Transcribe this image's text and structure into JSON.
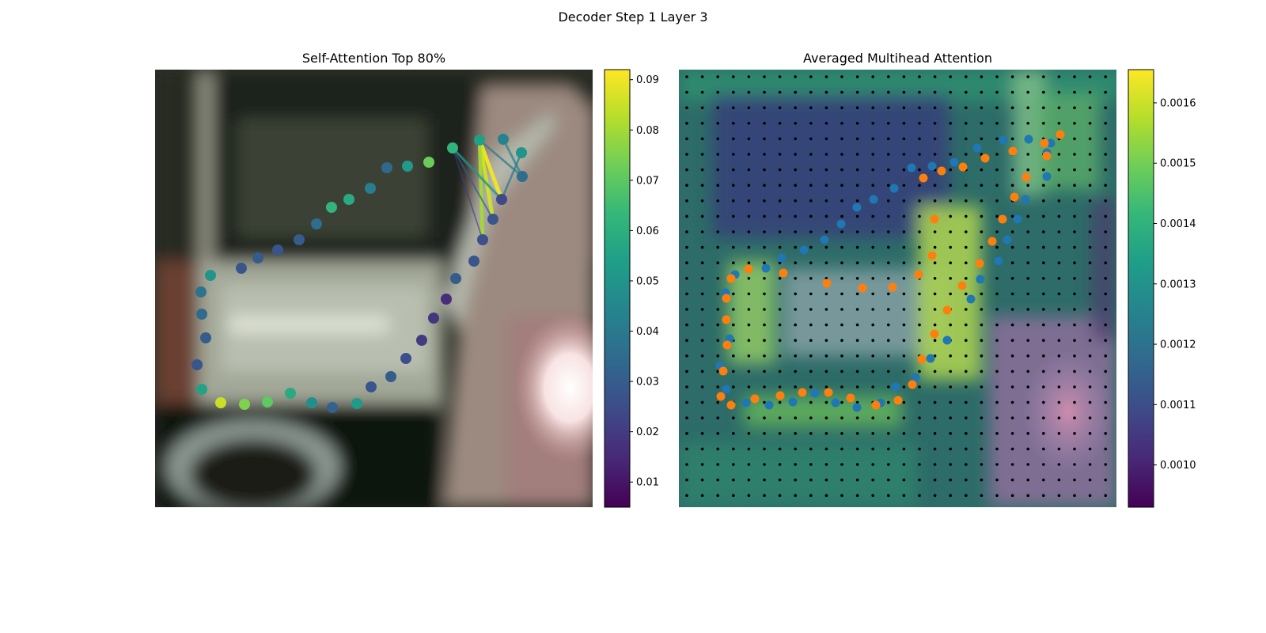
{
  "figure": {
    "title": "Decoder Step 1 Layer 3"
  },
  "colors": {
    "viridis": [
      "#440154",
      "#482878",
      "#3e4a89",
      "#31688e",
      "#26828e",
      "#1f9e89",
      "#35b779",
      "#6ece58",
      "#b5de2b",
      "#fde725"
    ],
    "series_blue": "#1f77b4",
    "series_orange": "#ff7f0e",
    "grid_dot": "#000000"
  },
  "chart_data": [
    {
      "type": "scatter",
      "title": "Self-Attention Top 80%",
      "colorbar": {
        "ticks": [
          "0.01",
          "0.02",
          "0.03",
          "0.04",
          "0.05",
          "0.06",
          "0.07",
          "0.08",
          "0.09"
        ],
        "range": [
          0.005,
          0.092
        ]
      },
      "points": [
        {
          "x": 266,
          "y": 348,
          "v": 0.05
        },
        {
          "x": 254,
          "y": 369,
          "v": 0.038
        },
        {
          "x": 255,
          "y": 397,
          "v": 0.035
        },
        {
          "x": 260,
          "y": 427,
          "v": 0.03
        },
        {
          "x": 249,
          "y": 461,
          "v": 0.028
        },
        {
          "x": 255,
          "y": 492,
          "v": 0.055
        },
        {
          "x": 279,
          "y": 509,
          "v": 0.085
        },
        {
          "x": 309,
          "y": 511,
          "v": 0.075
        },
        {
          "x": 338,
          "y": 508,
          "v": 0.07
        },
        {
          "x": 367,
          "y": 497,
          "v": 0.058
        },
        {
          "x": 394,
          "y": 509,
          "v": 0.048
        },
        {
          "x": 420,
          "y": 515,
          "v": 0.032
        },
        {
          "x": 451,
          "y": 510,
          "v": 0.052
        },
        {
          "x": 469,
          "y": 489,
          "v": 0.028
        },
        {
          "x": 494,
          "y": 476,
          "v": 0.03
        },
        {
          "x": 513,
          "y": 453,
          "v": 0.026
        },
        {
          "x": 533,
          "y": 430,
          "v": 0.02
        },
        {
          "x": 548,
          "y": 402,
          "v": 0.018
        },
        {
          "x": 564,
          "y": 378,
          "v": 0.016
        },
        {
          "x": 576,
          "y": 352,
          "v": 0.03
        },
        {
          "x": 599,
          "y": 330,
          "v": 0.028
        },
        {
          "x": 610,
          "y": 303,
          "v": 0.026
        },
        {
          "x": 623,
          "y": 277,
          "v": 0.028
        },
        {
          "x": 634,
          "y": 252,
          "v": 0.024
        },
        {
          "x": 660,
          "y": 223,
          "v": 0.036
        },
        {
          "x": 659,
          "y": 193,
          "v": 0.05
        },
        {
          "x": 636,
          "y": 176,
          "v": 0.044
        },
        {
          "x": 606,
          "y": 177,
          "v": 0.054
        },
        {
          "x": 572,
          "y": 187,
          "v": 0.062
        },
        {
          "x": 542,
          "y": 205,
          "v": 0.072
        },
        {
          "x": 515,
          "y": 210,
          "v": 0.052
        },
        {
          "x": 489,
          "y": 212,
          "v": 0.034
        },
        {
          "x": 468,
          "y": 238,
          "v": 0.042
        },
        {
          "x": 441,
          "y": 252,
          "v": 0.058
        },
        {
          "x": 419,
          "y": 262,
          "v": 0.062
        },
        {
          "x": 400,
          "y": 283,
          "v": 0.036
        },
        {
          "x": 378,
          "y": 303,
          "v": 0.03
        },
        {
          "x": 351,
          "y": 316,
          "v": 0.028
        },
        {
          "x": 326,
          "y": 326,
          "v": 0.03
        },
        {
          "x": 305,
          "y": 339,
          "v": 0.028
        }
      ],
      "links": [
        {
          "x1": 606,
          "y1": 177,
          "x2": 634,
          "y2": 252,
          "v": 0.09
        },
        {
          "x1": 606,
          "y1": 177,
          "x2": 623,
          "y2": 277,
          "v": 0.086
        },
        {
          "x1": 606,
          "y1": 177,
          "x2": 610,
          "y2": 303,
          "v": 0.08
        },
        {
          "x1": 572,
          "y1": 187,
          "x2": 634,
          "y2": 252,
          "v": 0.05
        },
        {
          "x1": 572,
          "y1": 187,
          "x2": 623,
          "y2": 277,
          "v": 0.03
        },
        {
          "x1": 572,
          "y1": 187,
          "x2": 610,
          "y2": 303,
          "v": 0.02
        },
        {
          "x1": 636,
          "y1": 176,
          "x2": 660,
          "y2": 223,
          "v": 0.045
        },
        {
          "x1": 606,
          "y1": 177,
          "x2": 660,
          "y2": 223,
          "v": 0.04
        },
        {
          "x1": 659,
          "y1": 193,
          "x2": 634,
          "y2": 252,
          "v": 0.04
        }
      ]
    },
    {
      "type": "heatmap",
      "title": "Averaged Multihead Attention",
      "colorbar": {
        "ticks": [
          "0.0010",
          "0.0011",
          "0.0012",
          "0.0013",
          "0.0014",
          "0.0015",
          "0.0016"
        ],
        "range": [
          0.00093,
          0.001655
        ]
      },
      "series": [
        {
          "name": "blue",
          "points": [
            [
              929,
              347
            ],
            [
              917,
              370
            ],
            [
              922,
              428
            ],
            [
              910,
              462
            ],
            [
              918,
              492
            ],
            [
              943,
              509
            ],
            [
              972,
              512
            ],
            [
              1002,
              508
            ],
            [
              1030,
              497
            ],
            [
              1056,
              509
            ],
            [
              1083,
              515
            ],
            [
              1113,
              509
            ],
            [
              1132,
              489
            ],
            [
              1157,
              477
            ],
            [
              1176,
              453
            ],
            [
              1197,
              430
            ],
            [
              1227,
              378
            ],
            [
              1239,
              353
            ],
            [
              1262,
              330
            ],
            [
              1273,
              303
            ],
            [
              1286,
              277
            ],
            [
              1296,
              252
            ],
            [
              1323,
              223
            ],
            [
              1323,
              193
            ],
            [
              1328,
              181
            ],
            [
              1300,
              176
            ],
            [
              1268,
              177
            ],
            [
              1235,
              187
            ],
            [
              1206,
              205
            ],
            [
              1178,
              210
            ],
            [
              1152,
              212
            ],
            [
              1130,
              238
            ],
            [
              1104,
              252
            ],
            [
              1083,
              262
            ],
            [
              1063,
              283
            ],
            [
              1042,
              303
            ],
            [
              1016,
              316
            ],
            [
              988,
              326
            ],
            [
              968,
              339
            ]
          ]
        },
        {
          "name": "orange",
          "points": [
            [
              924,
              352
            ],
            [
              918,
              377
            ],
            [
              918,
              404
            ],
            [
              919,
              436
            ],
            [
              914,
              469
            ],
            [
              911,
              501
            ],
            [
              924,
              512
            ],
            [
              954,
              504
            ],
            [
              986,
              500
            ],
            [
              1014,
              496
            ],
            [
              1047,
              496
            ],
            [
              1075,
              503
            ],
            [
              1107,
              512
            ],
            [
              1135,
              506
            ],
            [
              1153,
              486
            ],
            [
              1165,
              454
            ],
            [
              1181,
              422
            ],
            [
              1197,
              392
            ],
            [
              1216,
              361
            ],
            [
              1238,
              333
            ],
            [
              1254,
              305
            ],
            [
              1267,
              277
            ],
            [
              1282,
              249
            ],
            [
              1297,
              224
            ],
            [
              1323,
              197
            ],
            [
              1320,
              181
            ],
            [
              1340,
              170
            ],
            [
              1280,
              191
            ],
            [
              1245,
              200
            ],
            [
              1217,
              211
            ],
            [
              1190,
              216
            ],
            [
              1167,
              225
            ],
            [
              1181,
              277
            ],
            [
              1178,
              323
            ],
            [
              1161,
              347
            ],
            [
              1128,
              363
            ],
            [
              1090,
              364
            ],
            [
              1045,
              358
            ],
            [
              990,
              345
            ],
            [
              946,
              340
            ]
          ]
        }
      ]
    }
  ]
}
